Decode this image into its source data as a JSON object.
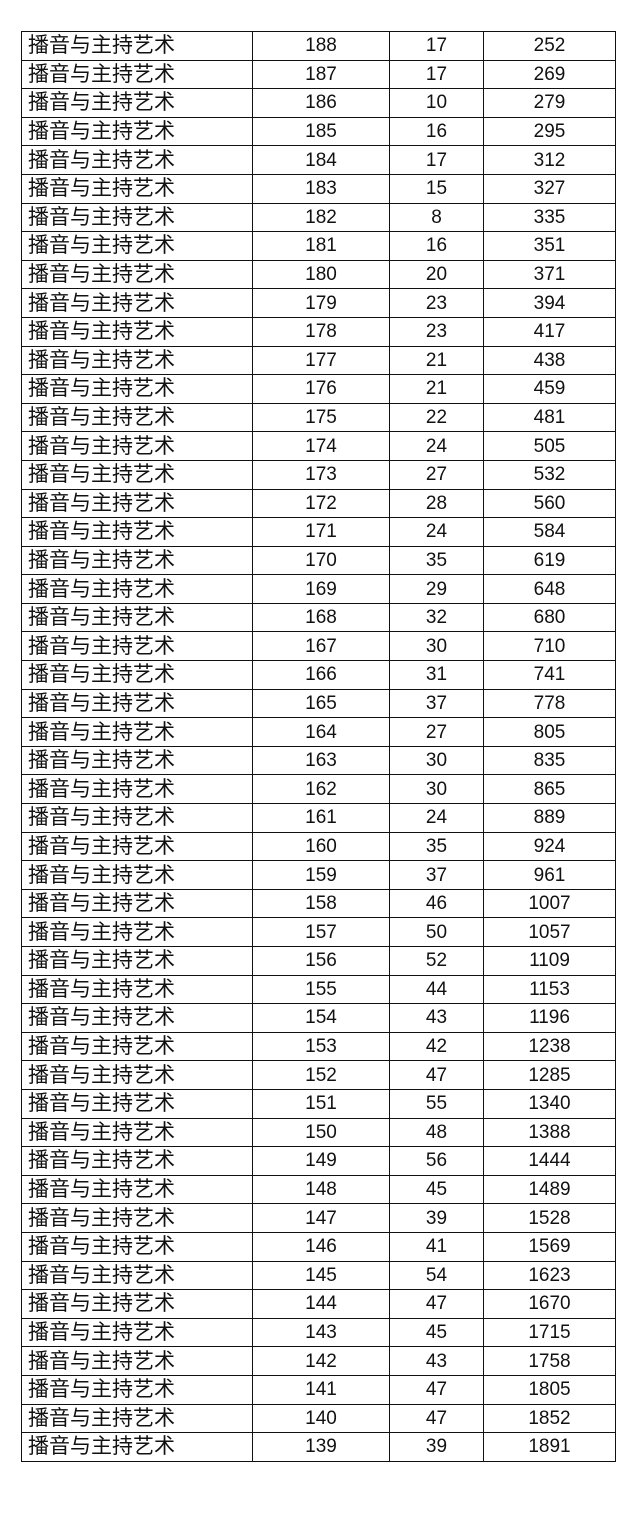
{
  "table": {
    "major": "播音与主持艺术",
    "rows": [
      [
        188,
        17,
        252
      ],
      [
        187,
        17,
        269
      ],
      [
        186,
        10,
        279
      ],
      [
        185,
        16,
        295
      ],
      [
        184,
        17,
        312
      ],
      [
        183,
        15,
        327
      ],
      [
        182,
        8,
        335
      ],
      [
        181,
        16,
        351
      ],
      [
        180,
        20,
        371
      ],
      [
        179,
        23,
        394
      ],
      [
        178,
        23,
        417
      ],
      [
        177,
        21,
        438
      ],
      [
        176,
        21,
        459
      ],
      [
        175,
        22,
        481
      ],
      [
        174,
        24,
        505
      ],
      [
        173,
        27,
        532
      ],
      [
        172,
        28,
        560
      ],
      [
        171,
        24,
        584
      ],
      [
        170,
        35,
        619
      ],
      [
        169,
        29,
        648
      ],
      [
        168,
        32,
        680
      ],
      [
        167,
        30,
        710
      ],
      [
        166,
        31,
        741
      ],
      [
        165,
        37,
        778
      ],
      [
        164,
        27,
        805
      ],
      [
        163,
        30,
        835
      ],
      [
        162,
        30,
        865
      ],
      [
        161,
        24,
        889
      ],
      [
        160,
        35,
        924
      ],
      [
        159,
        37,
        961
      ],
      [
        158,
        46,
        1007
      ],
      [
        157,
        50,
        1057
      ],
      [
        156,
        52,
        1109
      ],
      [
        155,
        44,
        1153
      ],
      [
        154,
        43,
        1196
      ],
      [
        153,
        42,
        1238
      ],
      [
        152,
        47,
        1285
      ],
      [
        151,
        55,
        1340
      ],
      [
        150,
        48,
        1388
      ],
      [
        149,
        56,
        1444
      ],
      [
        148,
        45,
        1489
      ],
      [
        147,
        39,
        1528
      ],
      [
        146,
        41,
        1569
      ],
      [
        145,
        54,
        1623
      ],
      [
        144,
        47,
        1670
      ],
      [
        143,
        45,
        1715
      ],
      [
        142,
        43,
        1758
      ],
      [
        141,
        47,
        1805
      ],
      [
        140,
        47,
        1852
      ],
      [
        139,
        39,
        1891
      ]
    ]
  }
}
